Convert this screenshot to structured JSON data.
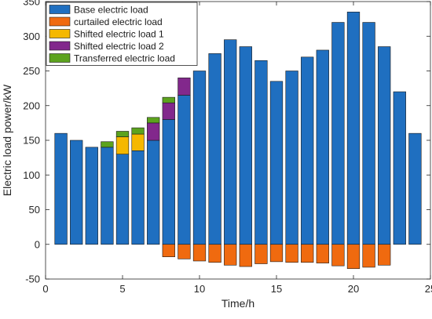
{
  "chart_data": {
    "type": "bar",
    "stacked": true,
    "xlabel": "Time/h",
    "ylabel": "Electric load power/kW",
    "xlim": [
      0,
      25
    ],
    "ylim": [
      -50,
      350
    ],
    "xticks": [
      0,
      5,
      10,
      15,
      20,
      25
    ],
    "yticks": [
      -50,
      0,
      50,
      100,
      150,
      200,
      250,
      300,
      350
    ],
    "grid": false,
    "legend_position": "top-left",
    "x": [
      1,
      2,
      3,
      4,
      5,
      6,
      7,
      8,
      9,
      10,
      11,
      12,
      13,
      14,
      15,
      16,
      17,
      18,
      19,
      20,
      21,
      22,
      23,
      24
    ],
    "series": [
      {
        "name": "Base electric load",
        "color": "#1f6fc0",
        "values": [
          160,
          150,
          140,
          140,
          130,
          135,
          150,
          180,
          215,
          250,
          275,
          295,
          285,
          265,
          235,
          250,
          270,
          280,
          320,
          335,
          320,
          285,
          220,
          160
        ]
      },
      {
        "name": "curtailed electric load",
        "color": "#f06a0f",
        "values": [
          0,
          0,
          0,
          0,
          0,
          0,
          0,
          -18,
          -21,
          -24,
          -26,
          -30,
          -32,
          -28,
          -25,
          -26,
          -26,
          -27,
          -31,
          -35,
          -33,
          -30,
          0,
          0
        ]
      },
      {
        "name": "Shifted electric load 1",
        "color": "#f5b800",
        "values": [
          0,
          0,
          0,
          0,
          25,
          24,
          0,
          0,
          0,
          0,
          0,
          0,
          0,
          0,
          0,
          0,
          0,
          0,
          0,
          0,
          0,
          0,
          0,
          0
        ]
      },
      {
        "name": "Shifted electric load 2",
        "color": "#82288c",
        "values": [
          0,
          0,
          0,
          0,
          0,
          0,
          25,
          24,
          25,
          0,
          0,
          0,
          0,
          0,
          0,
          0,
          0,
          0,
          0,
          0,
          0,
          0,
          0,
          0
        ]
      },
      {
        "name": "Transferred electric load",
        "color": "#5ca31e",
        "values": [
          0,
          0,
          0,
          8,
          8,
          9,
          8,
          8,
          0,
          0,
          0,
          0,
          0,
          0,
          0,
          0,
          0,
          0,
          0,
          0,
          0,
          0,
          0,
          0
        ]
      }
    ]
  }
}
